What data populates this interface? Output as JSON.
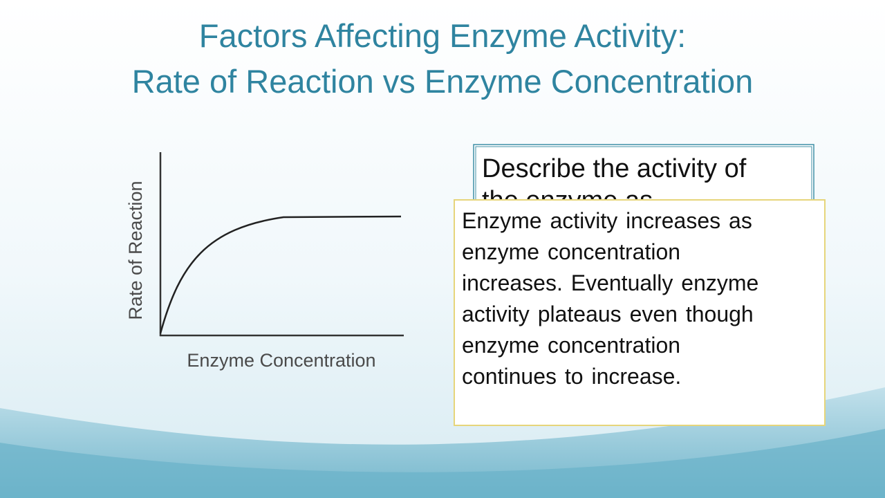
{
  "slide": {
    "title": [
      "Factors Affecting Enzyme Activity:",
      "Rate of Reaction vs Enzyme Concentration"
    ],
    "figure": {
      "y_label": "Rate of Reaction",
      "x_label": "Enzyme Concentration"
    },
    "question": [
      "Describe the activity of",
      "the enzyme as"
    ],
    "answer": [
      "Enzyme activity increases as",
      "enzyme concentration",
      "increases. Eventually enzyme",
      "activity plateaus even though",
      "enzyme concentration",
      "continues to increase."
    ]
  }
}
